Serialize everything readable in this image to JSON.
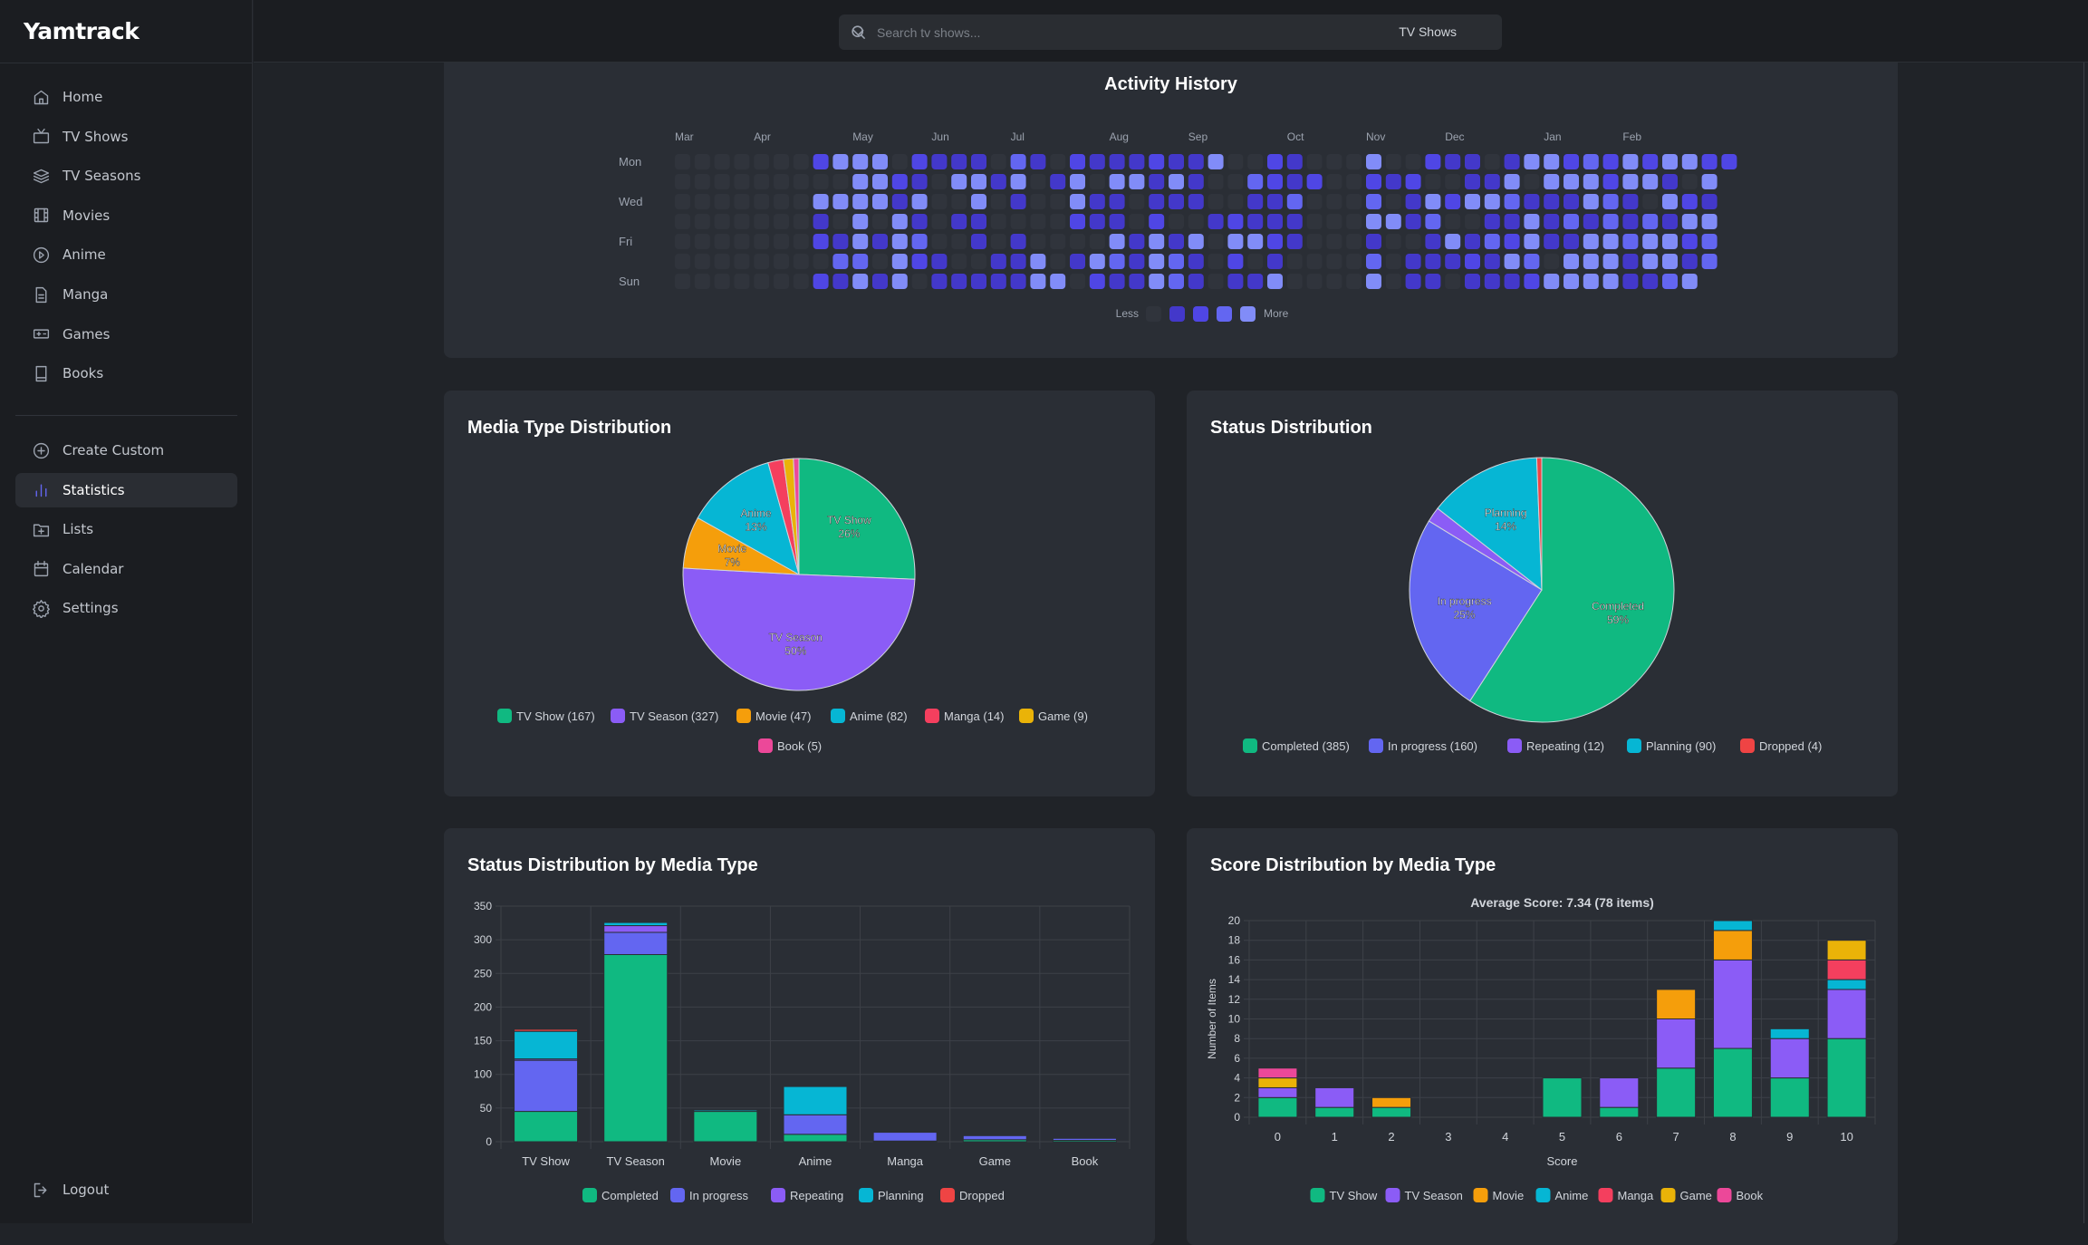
{
  "app": {
    "title": "Yamtrack"
  },
  "sidebar": {
    "items": [
      {
        "label": "Home",
        "icon": "home-icon"
      },
      {
        "label": "TV Shows",
        "icon": "tv-icon"
      },
      {
        "label": "TV Seasons",
        "icon": "layers-icon"
      },
      {
        "label": "Movies",
        "icon": "film-icon"
      },
      {
        "label": "Anime",
        "icon": "play-circle-icon"
      },
      {
        "label": "Manga",
        "icon": "document-icon"
      },
      {
        "label": "Games",
        "icon": "gamepad-icon"
      },
      {
        "label": "Books",
        "icon": "book-icon"
      }
    ],
    "secondary": [
      {
        "label": "Create Custom",
        "icon": "plus-circle-icon"
      },
      {
        "label": "Statistics",
        "icon": "bar-chart-icon",
        "active": true
      },
      {
        "label": "Lists",
        "icon": "folder-plus-icon"
      },
      {
        "label": "Calendar",
        "icon": "calendar-icon"
      },
      {
        "label": "Settings",
        "icon": "gear-icon"
      }
    ],
    "logout": {
      "label": "Logout",
      "icon": "logout-icon"
    }
  },
  "search": {
    "placeholder": "Search tv shows...",
    "value": "",
    "type": "TV Shows"
  },
  "activity": {
    "title": "Activity History",
    "months": [
      {
        "label": "Mar",
        "week": 0
      },
      {
        "label": "Apr",
        "week": 4
      },
      {
        "label": "May",
        "week": 9
      },
      {
        "label": "Jun",
        "week": 13
      },
      {
        "label": "Jul",
        "week": 17
      },
      {
        "label": "Aug",
        "week": 22
      },
      {
        "label": "Sep",
        "week": 26
      },
      {
        "label": "Oct",
        "week": 31
      },
      {
        "label": "Nov",
        "week": 35
      },
      {
        "label": "Dec",
        "week": 39
      },
      {
        "label": "Jan",
        "week": 44
      },
      {
        "label": "Feb",
        "week": 48
      }
    ],
    "days": [
      "Mon",
      "",
      "Wed",
      "",
      "Fri",
      "",
      "Sun"
    ],
    "levels": [
      "00000002444021110310211121140021000400211014423242442 2",
      "00000000044210441401404414100321200212001140444244104",
      "00000004444140040100411011100113000301424431114310421",
      "00000001040410110000211020012111000441300114131313144",
      "00000002141430010100004141404421000100141324114434423",
      "00000000330421001140143143102010000301112143044414413",
      "0000000214140111114402114310114000040110111244441134-"
    ],
    "legend_less": "Less",
    "legend_more": "More",
    "level_colors": [
      "#30343c",
      "#4338ca",
      "#4f46e5",
      "#6366f1",
      "#818cf8"
    ]
  },
  "media_pie": {
    "title": "Media Type Distribution",
    "chart_data": {
      "type": "pie",
      "labels": [
        "TV Show",
        "TV Season",
        "Movie",
        "Anime",
        "Manga",
        "Game",
        "Book"
      ],
      "values": [
        167,
        327,
        47,
        82,
        14,
        9,
        5
      ],
      "percent_labels": [
        "26%",
        "50%",
        "7%",
        "13%",
        "",
        "",
        ""
      ],
      "legend": [
        "TV Show (167)",
        "TV Season (327)",
        "Movie (47)",
        "Anime (82)",
        "Manga (14)",
        "Game (9)",
        "Book (5)"
      ],
      "colors": [
        "#10b981",
        "#8b5cf6",
        "#f59e0b",
        "#06b6d4",
        "#f43f5e",
        "#eab308",
        "#ec4899"
      ]
    }
  },
  "status_pie": {
    "title": "Status Distribution",
    "chart_data": {
      "type": "pie",
      "labels": [
        "Completed",
        "In progress",
        "Repeating",
        "Planning",
        "Dropped"
      ],
      "values": [
        385,
        160,
        12,
        90,
        4
      ],
      "percent_labels": [
        "59%",
        "25%",
        "",
        "14%",
        ""
      ],
      "legend": [
        "Completed (385)",
        "In progress (160)",
        "Repeating (12)",
        "Planning (90)",
        "Dropped (4)"
      ],
      "colors": [
        "#10b981",
        "#6366f1",
        "#8b5cf6",
        "#06b6d4",
        "#ef4444"
      ]
    }
  },
  "status_bar": {
    "title": "Status Distribution by Media Type",
    "chart_data": {
      "type": "bar",
      "stacked": true,
      "categories": [
        "TV Show",
        "TV Season",
        "Movie",
        "Anime",
        "Manga",
        "Game",
        "Book"
      ],
      "series": [
        {
          "name": "Completed",
          "color": "#10b981",
          "values": [
            45,
            278,
            45,
            11,
            1,
            3,
            2
          ]
        },
        {
          "name": "In progress",
          "color": "#6366f1",
          "values": [
            76,
            33,
            0,
            29,
            13,
            6,
            3
          ]
        },
        {
          "name": "Repeating",
          "color": "#8b5cf6",
          "values": [
            2,
            10,
            0,
            0,
            0,
            0,
            0
          ]
        },
        {
          "name": "Planning",
          "color": "#06b6d4",
          "values": [
            41,
            5,
            2,
            42,
            0,
            0,
            0
          ]
        },
        {
          "name": "Dropped",
          "color": "#ef4444",
          "values": [
            3,
            1,
            0,
            0,
            0,
            0,
            0
          ]
        }
      ],
      "ylim": [
        0,
        350
      ],
      "yticks": [
        "0",
        "50",
        "100",
        "150",
        "200",
        "250",
        "300",
        "350"
      ],
      "grid": true,
      "legend": "bottom"
    }
  },
  "score_bar": {
    "title": "Score Distribution by Media Type",
    "chart_data": {
      "type": "bar",
      "stacked": true,
      "title": "Average Score: 7.34 (78 items)",
      "xlabel": "Score",
      "ylabel": "Number of Items",
      "categories": [
        "0",
        "1",
        "2",
        "3",
        "4",
        "5",
        "6",
        "7",
        "8",
        "9",
        "10"
      ],
      "series": [
        {
          "name": "TV Show",
          "color": "#10b981",
          "values": [
            2,
            1,
            1,
            0,
            0,
            4,
            1,
            5,
            7,
            4,
            8
          ]
        },
        {
          "name": "TV Season",
          "color": "#8b5cf6",
          "values": [
            1,
            2,
            0,
            0,
            0,
            0,
            3,
            5,
            9,
            4,
            5
          ]
        },
        {
          "name": "Movie",
          "color": "#f59e0b",
          "values": [
            0,
            0,
            1,
            0,
            0,
            0,
            0,
            3,
            3,
            0,
            0
          ]
        },
        {
          "name": "Anime",
          "color": "#06b6d4",
          "values": [
            0,
            0,
            0,
            0,
            0,
            0,
            0,
            0,
            1,
            1,
            1
          ]
        },
        {
          "name": "Manga",
          "color": "#f43f5e",
          "values": [
            0,
            0,
            0,
            0,
            0,
            0,
            0,
            0,
            0,
            0,
            2
          ]
        },
        {
          "name": "Game",
          "color": "#eab308",
          "values": [
            1,
            0,
            0,
            0,
            0,
            0,
            0,
            0,
            0,
            0,
            2
          ]
        },
        {
          "name": "Book",
          "color": "#ec4899",
          "values": [
            1,
            0,
            0,
            0,
            0,
            0,
            0,
            0,
            0,
            0,
            0
          ]
        }
      ],
      "ylim": [
        0,
        20
      ],
      "yticks": [
        "0",
        "2",
        "4",
        "6",
        "8",
        "10",
        "12",
        "14",
        "16",
        "18",
        "20"
      ],
      "grid": true,
      "legend": "bottom"
    }
  }
}
